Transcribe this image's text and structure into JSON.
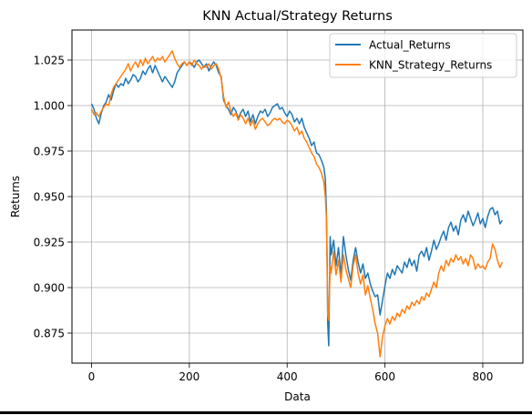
{
  "chart_data": {
    "type": "line",
    "title": "KNN Actual/Strategy Returns",
    "xlabel": "Data",
    "ylabel": "Returns",
    "xlim": [
      -40,
      882
    ],
    "ylim": [
      0.8585,
      1.0415
    ],
    "xticks": [
      0,
      200,
      400,
      600,
      800
    ],
    "yticks": [
      0.875,
      0.9,
      0.925,
      0.95,
      0.975,
      1.0,
      1.025
    ],
    "ytick_format": 3,
    "grid": true,
    "legend": "top-right",
    "series": [
      {
        "name": "Actual_Returns",
        "color": "#1f77b4",
        "x": [
          0,
          5,
          10,
          15,
          20,
          25,
          30,
          35,
          40,
          45,
          50,
          55,
          60,
          65,
          70,
          75,
          80,
          85,
          90,
          95,
          100,
          105,
          110,
          115,
          120,
          125,
          130,
          135,
          140,
          145,
          150,
          155,
          160,
          165,
          170,
          175,
          180,
          185,
          190,
          195,
          200,
          205,
          210,
          215,
          220,
          225,
          230,
          235,
          240,
          245,
          250,
          255,
          260,
          265,
          270,
          275,
          280,
          285,
          290,
          295,
          300,
          305,
          310,
          315,
          320,
          325,
          330,
          335,
          340,
          345,
          350,
          355,
          360,
          365,
          370,
          375,
          380,
          385,
          390,
          395,
          400,
          405,
          410,
          415,
          420,
          425,
          430,
          435,
          440,
          445,
          450,
          455,
          460,
          465,
          470,
          475,
          478,
          480,
          481,
          482,
          483,
          485,
          488,
          490,
          495,
          500,
          505,
          510,
          515,
          520,
          525,
          530,
          535,
          540,
          545,
          550,
          555,
          560,
          565,
          570,
          575,
          580,
          585,
          590,
          595,
          600,
          605,
          610,
          615,
          620,
          625,
          630,
          635,
          640,
          645,
          650,
          655,
          660,
          665,
          670,
          675,
          680,
          685,
          690,
          695,
          700,
          705,
          710,
          715,
          720,
          725,
          730,
          735,
          740,
          745,
          750,
          755,
          760,
          765,
          770,
          775,
          780,
          785,
          790,
          795,
          800,
          805,
          810,
          815,
          820,
          825,
          830,
          835,
          840
        ],
        "y": [
          1.001,
          0.998,
          0.993,
          0.99,
          0.996,
          1.0,
          1.002,
          1.006,
          1.003,
          1.008,
          1.012,
          1.01,
          1.012,
          1.011,
          1.015,
          1.012,
          1.014,
          1.017,
          1.016,
          1.013,
          1.015,
          1.019,
          1.017,
          1.02,
          1.022,
          1.018,
          1.022,
          1.019,
          1.016,
          1.013,
          1.016,
          1.014,
          1.012,
          1.01,
          1.013,
          1.018,
          1.02,
          1.022,
          1.024,
          1.022,
          1.024,
          1.023,
          1.021,
          1.024,
          1.025,
          1.023,
          1.021,
          1.023,
          1.019,
          1.022,
          1.024,
          1.022,
          1.018,
          1.016,
          1.003,
          1.0,
          0.998,
          0.995,
          0.999,
          0.997,
          0.993,
          0.996,
          0.998,
          0.994,
          0.997,
          0.991,
          0.995,
          0.99,
          0.994,
          0.997,
          0.996,
          0.998,
          0.994,
          0.996,
          0.999,
          1.0,
          1.001,
          0.998,
          0.999,
          0.996,
          0.994,
          0.997,
          0.995,
          0.991,
          0.993,
          0.99,
          0.993,
          0.988,
          0.985,
          0.982,
          0.978,
          0.98,
          0.974,
          0.973,
          0.97,
          0.966,
          0.96,
          0.945,
          0.93,
          0.91,
          0.88,
          0.868,
          0.928,
          0.918,
          0.926,
          0.912,
          0.922,
          0.906,
          0.928,
          0.918,
          0.91,
          0.904,
          0.915,
          0.922,
          0.914,
          0.908,
          0.913,
          0.905,
          0.908,
          0.902,
          0.898,
          0.895,
          0.896,
          0.885,
          0.893,
          0.901,
          0.908,
          0.905,
          0.91,
          0.907,
          0.912,
          0.91,
          0.908,
          0.914,
          0.911,
          0.916,
          0.912,
          0.915,
          0.909,
          0.918,
          0.92,
          0.917,
          0.922,
          0.915,
          0.92,
          0.926,
          0.921,
          0.924,
          0.928,
          0.931,
          0.926,
          0.933,
          0.936,
          0.931,
          0.934,
          0.929,
          0.937,
          0.94,
          0.936,
          0.942,
          0.938,
          0.934,
          0.937,
          0.941,
          0.935,
          0.938,
          0.933,
          0.939,
          0.943,
          0.944,
          0.94,
          0.942,
          0.935,
          0.937
        ]
      },
      {
        "name": "KNN_Strategy_Returns",
        "color": "#ff7f0e",
        "x": [
          0,
          5,
          10,
          15,
          20,
          25,
          30,
          35,
          40,
          45,
          50,
          55,
          60,
          65,
          70,
          75,
          80,
          85,
          90,
          95,
          100,
          105,
          110,
          115,
          120,
          125,
          130,
          135,
          140,
          145,
          150,
          155,
          160,
          165,
          170,
          175,
          180,
          185,
          190,
          195,
          200,
          205,
          210,
          215,
          220,
          225,
          230,
          235,
          240,
          245,
          250,
          255,
          260,
          265,
          270,
          275,
          280,
          285,
          290,
          295,
          300,
          305,
          310,
          315,
          320,
          325,
          330,
          335,
          340,
          345,
          350,
          355,
          360,
          365,
          370,
          375,
          380,
          385,
          390,
          395,
          400,
          405,
          410,
          415,
          420,
          425,
          430,
          435,
          440,
          445,
          450,
          455,
          460,
          465,
          470,
          475,
          478,
          480,
          481,
          482,
          483,
          485,
          488,
          490,
          495,
          500,
          505,
          510,
          515,
          520,
          525,
          530,
          535,
          540,
          545,
          550,
          555,
          560,
          565,
          570,
          575,
          580,
          585,
          590,
          595,
          600,
          605,
          610,
          615,
          620,
          625,
          630,
          635,
          640,
          645,
          650,
          655,
          660,
          665,
          670,
          675,
          680,
          685,
          690,
          695,
          700,
          705,
          710,
          715,
          720,
          725,
          730,
          735,
          740,
          745,
          750,
          755,
          760,
          765,
          770,
          775,
          780,
          785,
          790,
          795,
          800,
          805,
          810,
          815,
          820,
          825,
          830,
          835,
          840
        ],
        "y": [
          0.998,
          0.995,
          0.996,
          0.994,
          0.997,
          0.999,
          1.001,
          1.0,
          1.006,
          1.01,
          1.012,
          1.014,
          1.016,
          1.018,
          1.02,
          1.023,
          1.019,
          1.022,
          1.024,
          1.021,
          1.025,
          1.022,
          1.026,
          1.023,
          1.025,
          1.027,
          1.024,
          1.026,
          1.025,
          1.027,
          1.024,
          1.026,
          1.028,
          1.03,
          1.026,
          1.023,
          1.021,
          1.023,
          1.024,
          1.022,
          1.024,
          1.022,
          1.025,
          1.023,
          1.022,
          1.02,
          1.022,
          1.021,
          1.023,
          1.02,
          1.022,
          1.023,
          1.02,
          1.015,
          1.005,
          0.999,
          1.002,
          0.997,
          0.994,
          0.996,
          0.992,
          0.995,
          0.993,
          0.99,
          0.993,
          0.989,
          0.992,
          0.987,
          0.99,
          0.992,
          0.993,
          0.991,
          0.989,
          0.99,
          0.992,
          0.993,
          0.992,
          0.993,
          0.991,
          0.99,
          0.992,
          0.991,
          0.989,
          0.986,
          0.988,
          0.984,
          0.986,
          0.982,
          0.98,
          0.977,
          0.974,
          0.972,
          0.968,
          0.966,
          0.963,
          0.958,
          0.95,
          0.94,
          0.925,
          0.905,
          0.885,
          0.882,
          0.912,
          0.908,
          0.92,
          0.907,
          0.915,
          0.903,
          0.918,
          0.91,
          0.905,
          0.9,
          0.912,
          0.918,
          0.908,
          0.902,
          0.907,
          0.896,
          0.901,
          0.894,
          0.888,
          0.88,
          0.875,
          0.862,
          0.873,
          0.879,
          0.883,
          0.88,
          0.884,
          0.882,
          0.886,
          0.884,
          0.888,
          0.886,
          0.89,
          0.888,
          0.892,
          0.89,
          0.893,
          0.891,
          0.895,
          0.893,
          0.897,
          0.895,
          0.899,
          0.903,
          0.9,
          0.908,
          0.912,
          0.909,
          0.915,
          0.912,
          0.916,
          0.914,
          0.918,
          0.915,
          0.917,
          0.913,
          0.916,
          0.912,
          0.918,
          0.916,
          0.91,
          0.913,
          0.911,
          0.912,
          0.91,
          0.914,
          0.916,
          0.924,
          0.921,
          0.915,
          0.911,
          0.914
        ]
      }
    ]
  }
}
